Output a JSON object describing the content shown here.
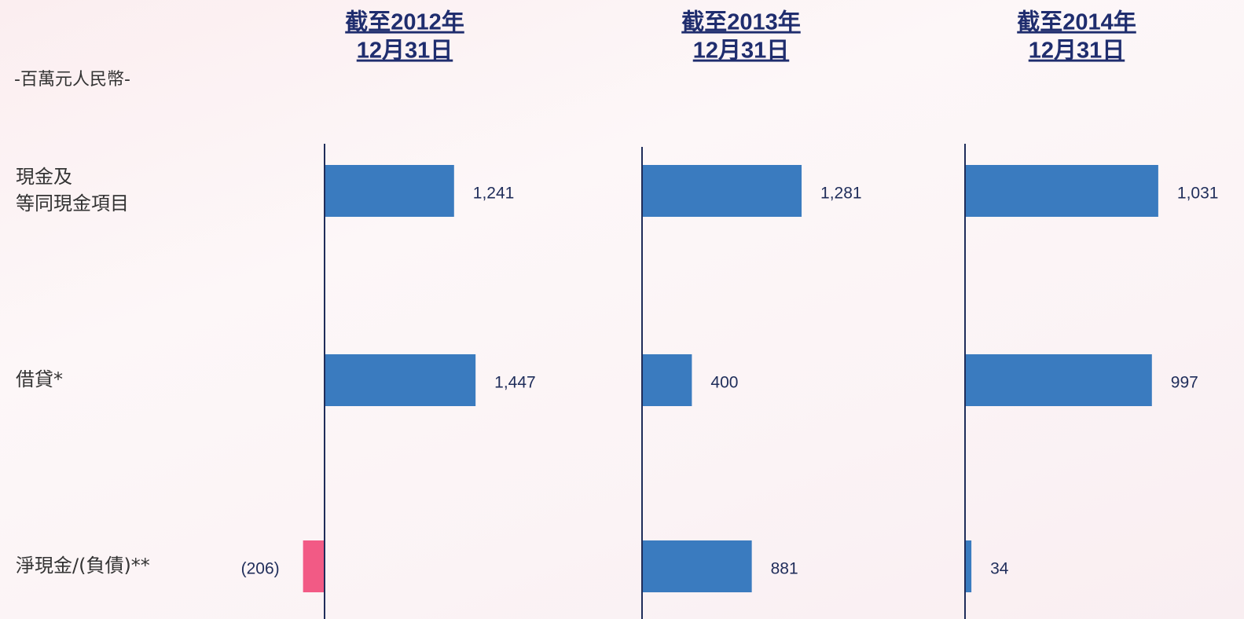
{
  "unit": "-百萬元人民幣-",
  "categories": [
    [
      "現金及",
      "等同現金項目"
    ],
    [
      "借貸*"
    ],
    [
      "淨現金/(負債)**"
    ]
  ],
  "chart_data": [
    {
      "type": "bar",
      "orientation": "horizontal",
      "title": [
        "截至2012年",
        "12月31日"
      ],
      "values": [
        1241,
        1447,
        -206
      ],
      "value_labels": [
        "1,241",
        "1,447",
        "(206)"
      ],
      "color": "#3a7bbf",
      "negative_color": "#f25a85"
    },
    {
      "type": "bar",
      "orientation": "horizontal",
      "title": [
        "截至2013年",
        "12月31日"
      ],
      "values": [
        1281,
        400,
        881
      ],
      "value_labels": [
        "1,281",
        "400",
        "881"
      ],
      "color": "#3a7bbf",
      "negative_color": "#f25a85"
    },
    {
      "type": "bar",
      "orientation": "horizontal",
      "title": [
        "截至2014年",
        "12月31日"
      ],
      "values": [
        1031,
        997,
        34
      ],
      "value_labels": [
        "1,031",
        "997",
        "34"
      ],
      "color": "#3a7bbf",
      "negative_color": "#f25a85"
    }
  ]
}
